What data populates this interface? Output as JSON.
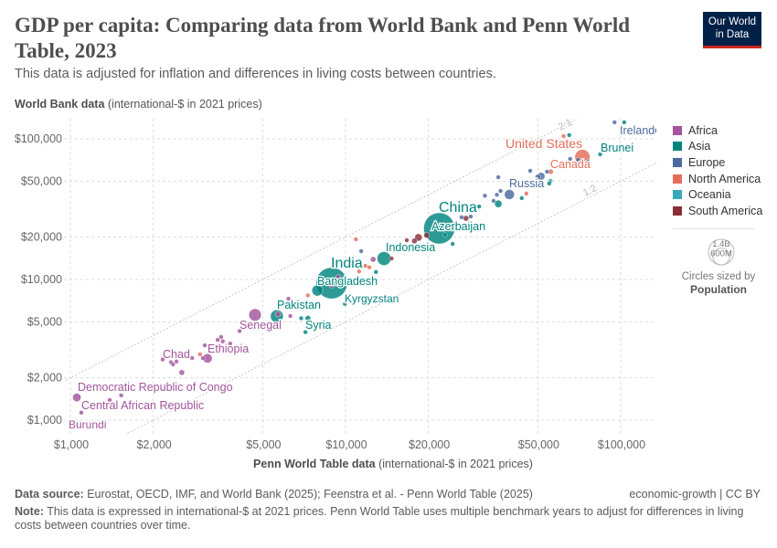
{
  "header": {
    "title": "GDP per capita: Comparing data from World Bank and Penn World Table, 2023",
    "subtitle": "This data is adjusted for inflation and differences in living costs between countries.",
    "logo_line1": "Our World",
    "logo_line2": "in Data"
  },
  "axes": {
    "y_label_bold": "World Bank data",
    "y_label_unit": "(international-$ in 2021 prices)",
    "x_label_bold": "Penn World Table data",
    "x_label_unit": "(international-$ in 2021 prices)"
  },
  "legend": {
    "regions": [
      {
        "name": "Africa",
        "color": "#a2559c"
      },
      {
        "name": "Asia",
        "color": "#00847e"
      },
      {
        "name": "Europe",
        "color": "#4c6a9c"
      },
      {
        "name": "North America",
        "color": "#e56e5a"
      },
      {
        "name": "Oceania",
        "color": "#38aaba"
      },
      {
        "name": "South America",
        "color": "#883039"
      }
    ],
    "size_large": "1.4B",
    "size_small": "600M",
    "size_caption": "Circles sized by",
    "size_variable": "Population"
  },
  "footer": {
    "source_label": "Data source:",
    "source_text": "Eurostat, OECD, IMF, and World Bank (2025); Feenstra et al. - Penn World Table (2025)",
    "license": "economic-growth | CC BY",
    "note_label": "Note:",
    "note_text": "This data is expressed in international-$ at 2021 prices. Penn World Table uses multiple benchmark years to adjust for differences in living costs between countries over time."
  },
  "chart_data": {
    "type": "scatter",
    "title": "GDP per capita: Comparing data from World Bank and Penn World Table, 2023",
    "xlabel": "Penn World Table data (international-$ in 2021 prices)",
    "ylabel": "World Bank data (international-$ in 2021 prices)",
    "x_scale": "log",
    "y_scale": "log",
    "xlim": [
      950,
      134000
    ],
    "ylim": [
      800,
      139000
    ],
    "grid": true,
    "legend_position": "right",
    "x_ticks": [
      {
        "v": 1000,
        "label": "$1,000"
      },
      {
        "v": 2000,
        "label": "$2,000"
      },
      {
        "v": 5000,
        "label": "$5,000"
      },
      {
        "v": 10000,
        "label": "$10,000"
      },
      {
        "v": 20000,
        "label": "$20,000"
      },
      {
        "v": 50000,
        "label": "$50,000"
      },
      {
        "v": 100000,
        "label": "$100,000"
      }
    ],
    "y_ticks": [
      {
        "v": 1000,
        "label": "$1,000"
      },
      {
        "v": 2000,
        "label": "$2,000"
      },
      {
        "v": 5000,
        "label": "$5,000"
      },
      {
        "v": 10000,
        "label": "$10,000"
      },
      {
        "v": 20000,
        "label": "$20,000"
      },
      {
        "v": 50000,
        "label": "$50,000"
      },
      {
        "v": 100000,
        "label": "$100,000"
      }
    ],
    "reference_lines": [
      {
        "label": "2:1",
        "ratio": 2
      },
      {
        "label": "1:2",
        "ratio": 0.5
      }
    ],
    "points": [
      {
        "x": 21900,
        "y": 23100,
        "region": "Asia",
        "pop": 1410,
        "label": "China"
      },
      {
        "x": 8900,
        "y": 9420,
        "region": "Asia",
        "pop": 1430,
        "label": "India"
      },
      {
        "x": 7900,
        "y": 8340,
        "region": "Asia",
        "pop": 173,
        "label": "Bangladesh"
      },
      {
        "x": 13800,
        "y": 14100,
        "region": "Asia",
        "pop": 278,
        "label": "Indonesia"
      },
      {
        "x": 23000,
        "y": 20800,
        "region": "Asia",
        "pop": 10,
        "label": "Azerbaijan"
      },
      {
        "x": 5630,
        "y": 5480,
        "region": "Asia",
        "pop": 240,
        "label": "Pakistan"
      },
      {
        "x": 4120,
        "y": 4300,
        "region": "Africa",
        "pop": 18,
        "label": "Senegal"
      },
      {
        "x": 7150,
        "y": 4220,
        "region": "Asia",
        "pop": 23,
        "label": "Syria"
      },
      {
        "x": 9950,
        "y": 6700,
        "region": "Asia",
        "pop": 7,
        "label": "Kyrgyzstan"
      },
      {
        "x": 2165,
        "y": 2700,
        "region": "Africa",
        "pop": 18,
        "label": "Chad"
      },
      {
        "x": 3150,
        "y": 2750,
        "region": "Africa",
        "pop": 126,
        "label": "Ethiopia"
      },
      {
        "x": 1055,
        "y": 1450,
        "region": "Africa",
        "pop": 102,
        "label": "Democratic Republic of Congo"
      },
      {
        "x": 1096,
        "y": 1130,
        "region": "Africa",
        "pop": 5,
        "label": "Central African Republic"
      },
      {
        "x": 980,
        "y": 620,
        "region": "Africa",
        "pop": 13,
        "label": "Burundi"
      },
      {
        "x": 39400,
        "y": 40200,
        "region": "Europe",
        "pop": 144,
        "label": "Russia"
      },
      {
        "x": 72600,
        "y": 74200,
        "region": "North America",
        "pop": 335,
        "label": "United States"
      },
      {
        "x": 55700,
        "y": 58400,
        "region": "North America",
        "pop": 39,
        "label": "Canada"
      },
      {
        "x": 84200,
        "y": 77600,
        "region": "Asia",
        "pop": 0.5,
        "label": "Brunei"
      },
      {
        "x": 134000,
        "y": 114400,
        "region": "Europe",
        "pop": 5,
        "label": "Ireland"
      },
      {
        "x": 4690,
        "y": 5600,
        "region": "Africa",
        "pop": 224
      },
      {
        "x": 10900,
        "y": 19300,
        "region": "North America",
        "pop": 10
      },
      {
        "x": 11400,
        "y": 15900,
        "region": "Europe",
        "pop": 10
      },
      {
        "x": 11200,
        "y": 11400,
        "region": "North America",
        "pop": 10
      },
      {
        "x": 11800,
        "y": 12500,
        "region": "North America",
        "pop": 10
      },
      {
        "x": 12200,
        "y": 12200,
        "region": "North America",
        "pop": 10
      },
      {
        "x": 12600,
        "y": 13900,
        "region": "Africa",
        "pop": 45
      },
      {
        "x": 12900,
        "y": 11300,
        "region": "Asia",
        "pop": 10
      },
      {
        "x": 9400,
        "y": 10500,
        "region": "Africa",
        "pop": 10
      },
      {
        "x": 8900,
        "y": 9000,
        "region": "Africa",
        "pop": 20
      },
      {
        "x": 7300,
        "y": 7700,
        "region": "North America",
        "pop": 10
      },
      {
        "x": 6200,
        "y": 7300,
        "region": "Africa",
        "pop": 20
      },
      {
        "x": 6300,
        "y": 5500,
        "region": "Africa",
        "pop": 10
      },
      {
        "x": 6900,
        "y": 5300,
        "region": "Asia",
        "pop": 10
      },
      {
        "x": 7300,
        "y": 5300,
        "region": "Asia",
        "pop": 45
      },
      {
        "x": 5680,
        "y": 5670,
        "region": "Africa",
        "pop": 45
      },
      {
        "x": 3530,
        "y": 3900,
        "region": "Africa",
        "pop": 20
      },
      {
        "x": 3430,
        "y": 3720,
        "region": "Africa",
        "pop": 20
      },
      {
        "x": 3810,
        "y": 3500,
        "region": "Africa",
        "pop": 10
      },
      {
        "x": 3580,
        "y": 3630,
        "region": "Africa",
        "pop": 20
      },
      {
        "x": 3080,
        "y": 3400,
        "region": "Africa",
        "pop": 10
      },
      {
        "x": 2770,
        "y": 2760,
        "region": "Africa",
        "pop": 10
      },
      {
        "x": 2960,
        "y": 2940,
        "region": "North America",
        "pop": 10
      },
      {
        "x": 3030,
        "y": 2760,
        "region": "Africa",
        "pop": 20
      },
      {
        "x": 2320,
        "y": 2580,
        "region": "Africa",
        "pop": 10
      },
      {
        "x": 2360,
        "y": 2490,
        "region": "Africa",
        "pop": 10
      },
      {
        "x": 2430,
        "y": 2610,
        "region": "Africa",
        "pop": 10
      },
      {
        "x": 2540,
        "y": 2180,
        "region": "Africa",
        "pop": 45
      },
      {
        "x": 1530,
        "y": 1500,
        "region": "Africa",
        "pop": 10
      },
      {
        "x": 1390,
        "y": 1390,
        "region": "Africa",
        "pop": 10
      },
      {
        "x": 30600,
        "y": 33000,
        "region": "Asia",
        "pop": 10
      },
      {
        "x": 28500,
        "y": 28000,
        "region": "Europe",
        "pop": 10
      },
      {
        "x": 27400,
        "y": 27200,
        "region": "South America",
        "pop": 45
      },
      {
        "x": 26400,
        "y": 27700,
        "region": "Europe",
        "pop": 10
      },
      {
        "x": 24500,
        "y": 17900,
        "region": "Asia",
        "pop": 10
      },
      {
        "x": 19700,
        "y": 20600,
        "region": "South America",
        "pop": 45
      },
      {
        "x": 18400,
        "y": 19900,
        "region": "South America",
        "pop": 80
      },
      {
        "x": 17800,
        "y": 18800,
        "region": "South America",
        "pop": 45
      },
      {
        "x": 16700,
        "y": 19000,
        "region": "South America",
        "pop": 10
      },
      {
        "x": 14700,
        "y": 14100,
        "region": "South America",
        "pop": 20
      },
      {
        "x": 35900,
        "y": 34500,
        "region": "Asia",
        "pop": 80
      },
      {
        "x": 34500,
        "y": 36200,
        "region": "Europe",
        "pop": 20
      },
      {
        "x": 35500,
        "y": 40000,
        "region": "Europe",
        "pop": 20
      },
      {
        "x": 36600,
        "y": 42600,
        "region": "Europe",
        "pop": 10
      },
      {
        "x": 32100,
        "y": 39400,
        "region": "Europe",
        "pop": 10
      },
      {
        "x": 35900,
        "y": 53300,
        "region": "Europe",
        "pop": 10
      },
      {
        "x": 43700,
        "y": 37900,
        "region": "Asia",
        "pop": 10
      },
      {
        "x": 45400,
        "y": 40800,
        "region": "North America",
        "pop": 10
      },
      {
        "x": 46900,
        "y": 59200,
        "region": "Europe",
        "pop": 10
      },
      {
        "x": 51400,
        "y": 54200,
        "region": "Europe",
        "pop": 84
      },
      {
        "x": 50000,
        "y": 53400,
        "region": "Europe",
        "pop": 45
      },
      {
        "x": 54000,
        "y": 58400,
        "region": "Europe",
        "pop": 20
      },
      {
        "x": 55600,
        "y": 50300,
        "region": "Oceania",
        "pop": 27
      },
      {
        "x": 55000,
        "y": 48100,
        "region": "Asia",
        "pop": 10
      },
      {
        "x": 62000,
        "y": 104600,
        "region": "North America",
        "pop": 10
      },
      {
        "x": 65000,
        "y": 106200,
        "region": "Asia",
        "pop": 10
      },
      {
        "x": 65500,
        "y": 72000,
        "region": "Europe",
        "pop": 10
      },
      {
        "x": 70000,
        "y": 71000,
        "region": "Europe",
        "pop": 10
      },
      {
        "x": 76000,
        "y": 68800,
        "region": "Asia",
        "pop": 10
      },
      {
        "x": 76500,
        "y": 63800,
        "region": "Europe",
        "pop": 10
      },
      {
        "x": 95000,
        "y": 131000,
        "region": "Europe",
        "pop": 1
      },
      {
        "x": 103000,
        "y": 131000,
        "region": "Asia",
        "pop": 6
      }
    ]
  }
}
